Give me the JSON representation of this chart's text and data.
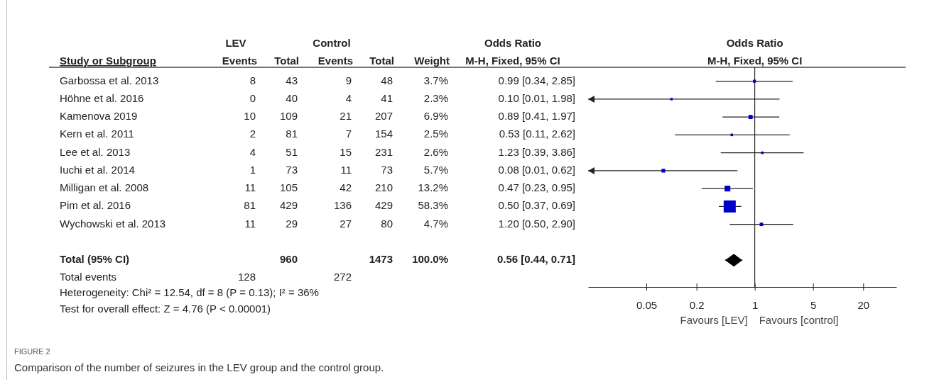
{
  "chart_data": [
    {
      "type": "other",
      "ylabel": "Study or Subgroup",
      "categories": [
        "Events",
        "Total",
        "Events",
        "Total",
        "Weight",
        "M-H, Fixed, 95% CI"
      ],
      "y_categories": [
        "Garbossa et al. 2013",
        "Höhne et al. 2016",
        "Kamenova 2019",
        "Kern et al. 2011",
        "Lee et al. 2013",
        "Iuchi et al. 2014",
        "Milligan et al. 2008",
        "Pim et al. 2016",
        "Wychowski et al. 2013",
        null,
        "Total (95% CI)",
        "Total events"
      ],
      "cell_labels": [
        [
          "8",
          "43",
          "9",
          "48",
          "3.7%",
          "0.99 [0.34, 2.85]"
        ],
        [
          "0",
          "40",
          "4",
          "41",
          "2.3%",
          "0.10 [0.01, 1.98]"
        ],
        [
          "10",
          "109",
          "21",
          "207",
          "6.9%",
          "0.89 [0.41, 1.97]"
        ],
        [
          "2",
          "81",
          "7",
          "154",
          "2.5%",
          "0.53 [0.11, 2.62]"
        ],
        [
          "4",
          "51",
          "15",
          "231",
          "2.6%",
          "1.23 [0.39, 3.86]"
        ],
        [
          "1",
          "73",
          "11",
          "73",
          "5.7%",
          "0.08 [0.01, 0.62]"
        ],
        [
          "11",
          "105",
          "42",
          "210",
          "13.2%",
          "0.47 [0.23, 0.95]"
        ],
        [
          "81",
          "429",
          "136",
          "429",
          "58.3%",
          "0.50 [0.37, 0.69]"
        ],
        [
          "11",
          "29",
          "27",
          "80",
          "4.7%",
          "1.20 [0.50, 2.90]"
        ],
        [
          null,
          null,
          null,
          null,
          null,
          null
        ],
        [
          null,
          "960",
          null,
          "1473",
          "100.0%",
          "0.56 [0.44, 0.71]"
        ],
        [
          "128",
          null,
          "272",
          null,
          null,
          null
        ]
      ],
      "annotations": [
        "LEV",
        "Control",
        "Odds Ratio",
        "Heterogeneity: Chi² = 12.54, df = 8 (P = 0.13); I² = 36%",
        "Test for overall effect: Z = 4.76 (P < 0.00001)",
        "FIGURE 2",
        "Comparison of the number of seizures in the LEV group and the control group."
      ]
    },
    {
      "type": "scatter",
      "orientation": "horizontal",
      "title": "Odds Ratio",
      "subtitle": "M-H, Fixed, 95% CI",
      "categories": [
        null,
        null,
        null,
        null,
        null,
        null,
        null,
        null,
        null,
        null,
        null,
        null
      ],
      "log": "x",
      "xlim": [
        0.01,
        50
      ],
      "xticks": [
        0.05,
        0.2,
        1,
        5,
        20
      ],
      "marker": "square",
      "ref_lines": [
        {
          "axis": "x",
          "value": 1,
          "color": "#000000"
        }
      ],
      "series": [
        {
          "color": "#0000cc",
          "values": [
            0.99,
            0.1,
            0.89,
            0.53,
            1.23,
            0.08,
            0.47,
            0.5,
            1.2,
            null,
            null,
            null
          ],
          "errors": [
            [
              0.34,
              2.85
            ],
            [
              0.01,
              1.98
            ],
            [
              0.41,
              1.97
            ],
            [
              0.11,
              2.62
            ],
            [
              0.39,
              3.86
            ],
            [
              0.01,
              0.62
            ],
            [
              0.23,
              0.95
            ],
            [
              0.37,
              0.69
            ],
            [
              0.5,
              2.9
            ],
            null,
            null,
            null
          ],
          "sizes": [
            0.063,
            0.039,
            0.118,
            0.043,
            0.045,
            0.098,
            0.226,
            1,
            0.081,
            null,
            null,
            null
          ]
        },
        {
          "marker": "diamond",
          "color": "#000000",
          "values": [
            null,
            null,
            null,
            null,
            null,
            null,
            null,
            null,
            null,
            null,
            0.56,
            null
          ],
          "errors": [
            null,
            null,
            null,
            null,
            null,
            null,
            null,
            null,
            null,
            null,
            [
              0.44,
              0.71
            ],
            null
          ]
        }
      ],
      "annotations": [
        "Favours [LEV]",
        "Favours [control]"
      ]
    }
  ]
}
